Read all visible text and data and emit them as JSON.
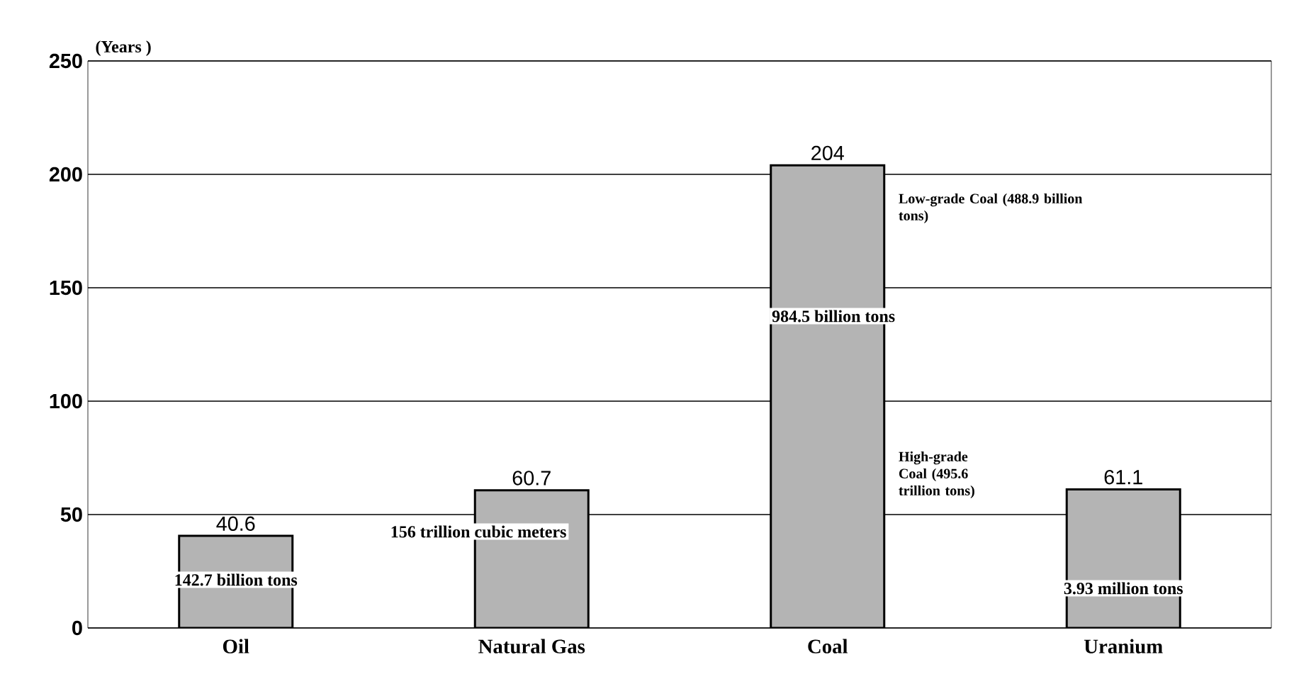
{
  "chart_data": {
    "type": "bar",
    "ylabel": "(Years )",
    "categories": [
      "Oil",
      "Natural Gas",
      "Coal",
      "Uranium"
    ],
    "values": [
      40.6,
      60.7,
      204,
      61.1
    ],
    "color": "#b4b4b4",
    "ylim": [
      0,
      250
    ],
    "yticks": [
      0,
      50,
      100,
      150,
      200,
      250
    ],
    "grid": "y",
    "data_labels": true,
    "annotations": [
      "142.7 billion tons",
      "156 trillion cubic meters",
      "984.5 billion tons",
      "Low-grade Coal (488.9 billion tons)",
      "High-grade Coal (495.6 trillion tons)",
      "3.93 million tons"
    ]
  }
}
